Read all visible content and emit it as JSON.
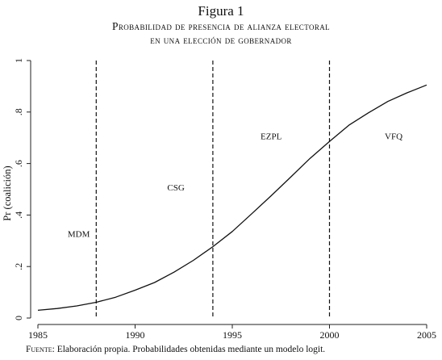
{
  "figure": {
    "title": "Figura 1",
    "subtitle_lines": [
      "Probabilidad de presencia de alianza electoral",
      "en una elección de gobernador"
    ]
  },
  "source": {
    "label": "Fuente:",
    "text": " Elaboración propia. Probabilidades obtenidas mediante un modelo logit."
  },
  "chart_data": {
    "type": "line",
    "title": "",
    "xlabel": "",
    "ylabel": "Pr (coalición)",
    "xlim": [
      1985,
      2005
    ],
    "ylim": [
      0,
      1
    ],
    "x_ticks": [
      1985,
      1990,
      1995,
      2000,
      2005
    ],
    "x_tick_labels": [
      "1985",
      "1990",
      "1995",
      "2000",
      "2005"
    ],
    "y_ticks": [
      0,
      0.2,
      0.4,
      0.6,
      0.8,
      1
    ],
    "y_tick_labels": [
      "0",
      ".2",
      ".4",
      ".6",
      ".8",
      "1"
    ],
    "grid": false,
    "series": [
      {
        "x": [
          1985,
          1986,
          1987,
          1988,
          1989,
          1990,
          1991,
          1992,
          1993,
          1994,
          1995,
          1996,
          1997,
          1998,
          1999,
          2000,
          2001,
          2002,
          2003,
          2004,
          2005
        ],
        "values": [
          0.03,
          0.037,
          0.047,
          0.061,
          0.081,
          0.108,
          0.138,
          0.178,
          0.224,
          0.277,
          0.336,
          0.405,
          0.475,
          0.547,
          0.62,
          0.686,
          0.749,
          0.797,
          0.841,
          0.875,
          0.905
        ]
      }
    ],
    "vlines": [
      1988,
      1994,
      2000
    ],
    "annotations": [
      {
        "text": "MDM",
        "x": 1987.1,
        "y": 0.315
      },
      {
        "text": "CSG",
        "x": 1992.1,
        "y": 0.495
      },
      {
        "text": "EZPL",
        "x": 1997.0,
        "y": 0.695
      },
      {
        "text": "VFQ",
        "x": 2003.3,
        "y": 0.695
      }
    ]
  }
}
